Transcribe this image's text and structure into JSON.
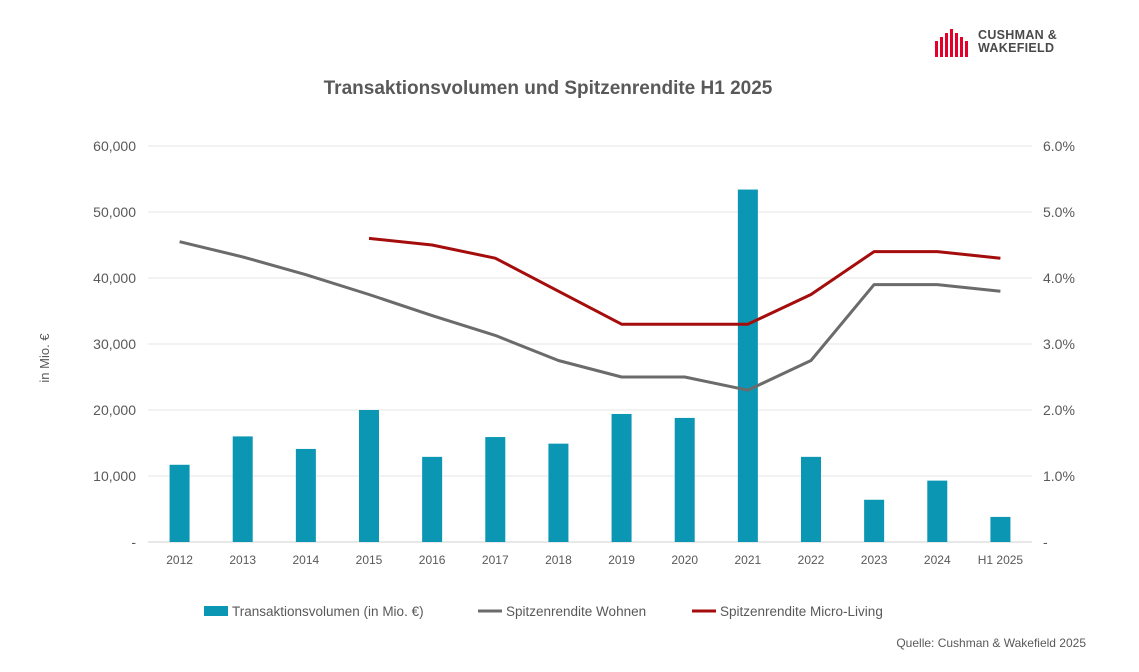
{
  "logo": {
    "line1": "CUSHMAN &",
    "line2": "WAKEFIELD",
    "icon": "cushman-wakefield-bars-logo",
    "color": "#e4002b"
  },
  "source": "Quelle: Cushman & Wakefield 2025",
  "chart_data": {
    "type": "bar+line",
    "title": "Transaktionsvolumen und Spitzenrendite H1 2025",
    "ylabel": "in Mio. €",
    "categories": [
      "2012",
      "2013",
      "2014",
      "2015",
      "2016",
      "2017",
      "2018",
      "2019",
      "2020",
      "2021",
      "2022",
      "2023",
      "2024",
      "H1 2025"
    ],
    "y_left": {
      "ticks": [
        "-",
        "10,000",
        "20,000",
        "30,000",
        "40,000",
        "50,000",
        "60,000"
      ],
      "range": [
        0,
        60000
      ]
    },
    "y_right": {
      "ticks": [
        "-",
        "1.0%",
        "2.0%",
        "3.0%",
        "4.0%",
        "5.0%",
        "6.0%"
      ],
      "range": [
        0,
        6.0
      ]
    },
    "grid": true,
    "legend_position": "bottom",
    "series": [
      {
        "name": "Transaktionsvolumen (in Mio. €)",
        "type": "bar",
        "axis": "left",
        "color": "#0b96b4",
        "values": [
          11700,
          16000,
          14100,
          20000,
          12900,
          15900,
          14900,
          19400,
          18800,
          53400,
          12900,
          6400,
          9300,
          3800
        ]
      },
      {
        "name": "Spitzenrendite Wohnen",
        "type": "line",
        "axis": "right",
        "color": "#6b6b6b",
        "values": [
          4.55,
          4.32,
          4.05,
          3.75,
          3.43,
          3.13,
          2.75,
          2.5,
          2.5,
          2.3,
          2.75,
          3.9,
          3.9,
          3.8
        ]
      },
      {
        "name": "Spitzenrendite Micro-Living",
        "type": "line",
        "axis": "right",
        "color": "#a50d0d",
        "values": [
          null,
          null,
          null,
          4.6,
          4.5,
          4.3,
          3.8,
          3.3,
          3.3,
          3.3,
          3.75,
          4.4,
          4.4,
          4.3
        ]
      }
    ]
  }
}
